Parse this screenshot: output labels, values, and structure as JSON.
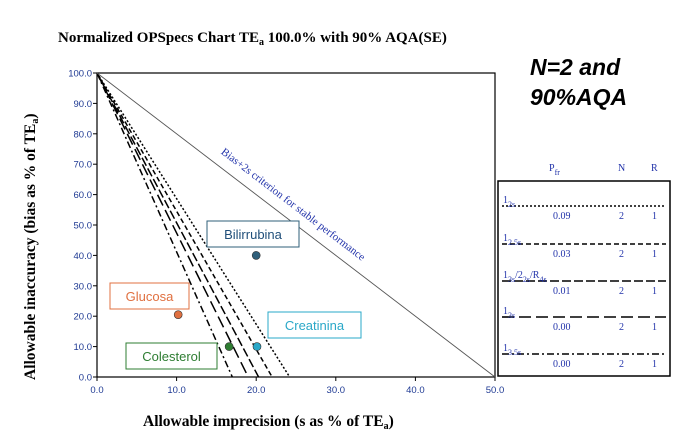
{
  "headline_line1": "N=2 and",
  "headline_line2": "90%AQA",
  "title_main": "Normalized OPSpecs Chart TE",
  "title_sub": "a",
  "title_rest": " 100.0% with 90% AQA(SE)",
  "xlabel_main": "Allowable imprecision (s as % of TE",
  "xlabel_sub": "a",
  "xlabel_end": ")",
  "ylabel_main": "Allowable inaccuracy (bias as % of TE",
  "ylabel_sub": "a",
  "ylabel_end": ")",
  "bias_line_label": "Bias+2s criterion for stable performance",
  "chart_data": {
    "type": "line",
    "xlim": [
      0,
      50
    ],
    "ylim": [
      0,
      100
    ],
    "x_ticks": [
      "0.0",
      "10.0",
      "20.0",
      "30.0",
      "40.0",
      "50.0"
    ],
    "y_ticks": [
      "0.0",
      "10.0",
      "20.0",
      "30.0",
      "40.0",
      "50.0",
      "60.0",
      "70.0",
      "80.0",
      "90.0",
      "100.0"
    ],
    "grid": false,
    "series": [
      {
        "name": "1_2s",
        "x_intercept": 24.2,
        "dash": "dotted"
      },
      {
        "name": "1_2.5s",
        "x_intercept": 22.0,
        "dash": "dashed"
      },
      {
        "name": "1_3s/2_2s/R_4s",
        "x_intercept": 20.3,
        "dash": "longdash"
      },
      {
        "name": "1_3s",
        "x_intercept": 19.0,
        "dash": "longdash-sparse"
      },
      {
        "name": "1_3.5s",
        "x_intercept": 17.0,
        "dash": "dashdot"
      },
      {
        "name": "Bias+2s",
        "x_intercept": 50.0,
        "dash": "solid"
      }
    ],
    "points": [
      {
        "label": "Bilirrubina",
        "x": 20.0,
        "y": 40.0,
        "color": "#2f5f7a",
        "label_color": "#1f4e79",
        "border": "#2f5f7a"
      },
      {
        "label": "Glucosa",
        "x": 10.2,
        "y": 20.5,
        "color": "#e07040",
        "label_color": "#e07040",
        "border": "#e07040"
      },
      {
        "label": "Creatinina",
        "x": 20.1,
        "y": 10.0,
        "color": "#2aa8c8",
        "label_color": "#2aa8c8",
        "border": "#2aa8c8"
      },
      {
        "label": "Colesterol",
        "x": 16.6,
        "y": 10.0,
        "color": "#2e7d32",
        "label_color": "#2e7d32",
        "border": "#2e7d32"
      }
    ],
    "legend": {
      "position": "right",
      "header": {
        "pfr": "P",
        "pfr_sub": "fr",
        "n": "N",
        "r": "R"
      },
      "rows": [
        {
          "rule_main": "1",
          "rule_sub": "2s",
          "pfr": "0.09",
          "n": "2",
          "r": "1"
        },
        {
          "rule_main": "1",
          "rule_sub": "2.5s",
          "pfr": "0.03",
          "n": "2",
          "r": "1"
        },
        {
          "rule_main": "1",
          "rule_sub": "3s",
          "rule_mid": "/2",
          "rule_sub2": "2s",
          "rule_mid2": "/R",
          "rule_sub3": "4s",
          "pfr": "0.01",
          "n": "2",
          "r": "1"
        },
        {
          "rule_main": "1",
          "rule_sub": "3s",
          "pfr": "0.00",
          "n": "2",
          "r": "1"
        },
        {
          "rule_main": "1",
          "rule_sub": "3.5s",
          "pfr": "0.00",
          "n": "2",
          "r": "1"
        }
      ]
    }
  }
}
